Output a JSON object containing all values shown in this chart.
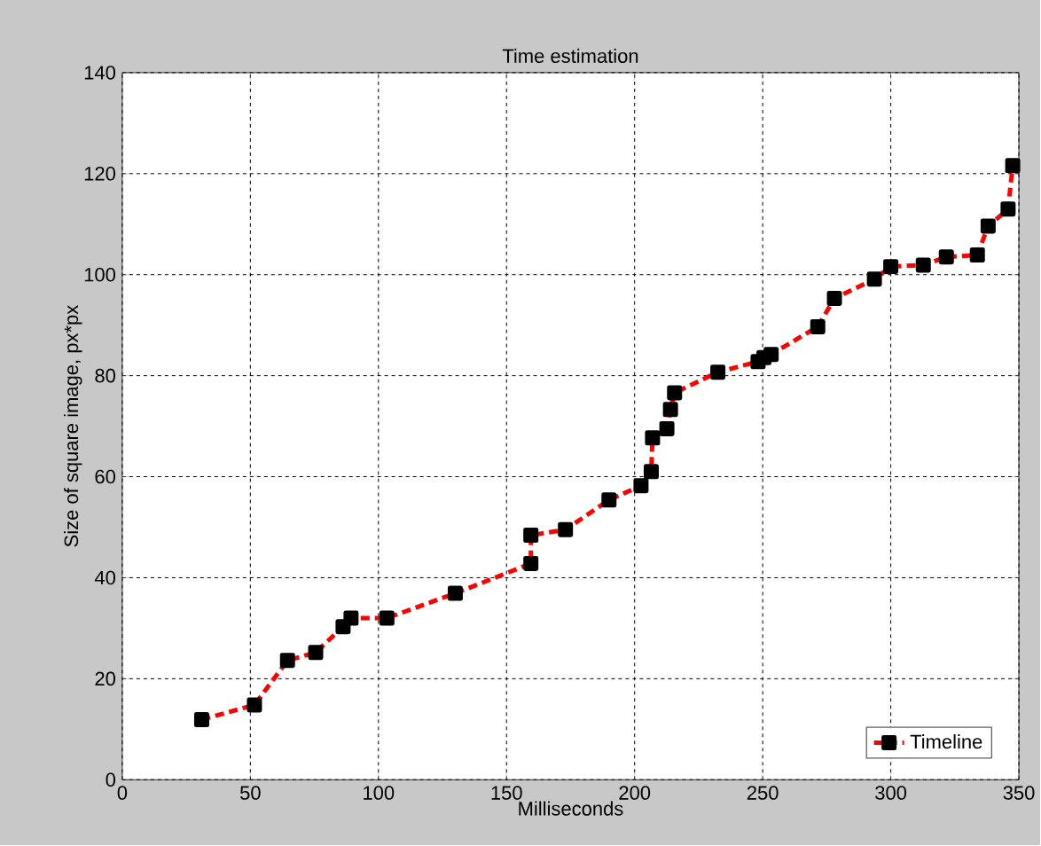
{
  "chart_data": {
    "type": "line",
    "title": "Time estimation",
    "xlabel": "Milliseconds",
    "ylabel": "Size of square image, px*px",
    "xlim": [
      0,
      350
    ],
    "ylim": [
      0,
      140
    ],
    "xticks": [
      0,
      50,
      100,
      150,
      200,
      250,
      300,
      350
    ],
    "yticks": [
      0,
      20,
      40,
      60,
      80,
      100,
      120,
      140
    ],
    "grid": true,
    "legend": "bottom right",
    "marker": "square",
    "line_style": "dashed",
    "series": [
      {
        "name": "Timeline",
        "color": "#ff0000",
        "x": [
          31,
          51.6,
          64.5,
          75.5,
          86.2,
          89.3,
          103.3,
          130,
          159.5,
          159.5,
          173,
          190,
          202.5,
          206.5,
          207,
          212.6,
          214,
          215.6,
          232.5,
          248.2,
          250.5,
          253.3,
          271.5,
          278,
          293.6,
          300,
          312.7,
          321.7,
          333.8,
          338,
          345.8,
          347.6
        ],
        "values": [
          11.9,
          14.8,
          23.6,
          25.2,
          30.3,
          32.0,
          32.0,
          36.9,
          42.8,
          48.4,
          49.5,
          55.4,
          58.2,
          61,
          67.7,
          69.5,
          73.3,
          76.6,
          80.7,
          82.8,
          83.6,
          84.2,
          89.7,
          95.3,
          99.1,
          101.6,
          101.9,
          103.5,
          103.9,
          109.6,
          113,
          121.6
        ]
      }
    ]
  }
}
